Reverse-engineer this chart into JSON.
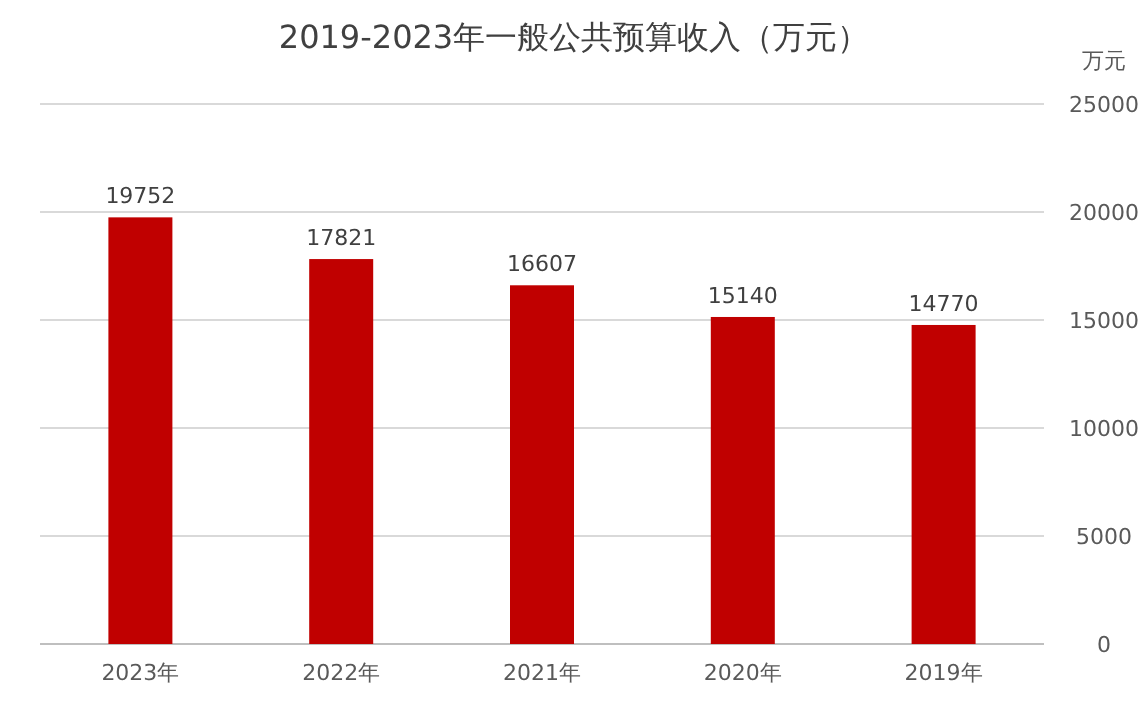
{
  "chart_data": {
    "type": "bar",
    "title": "2019-2023年一般公共预算收入（万元）",
    "ylabel": "万元",
    "categories": [
      "2023年",
      "2022年",
      "2021年",
      "2020年",
      "2019年"
    ],
    "values": [
      19752,
      17821,
      16607,
      15140,
      14770
    ],
    "color": "#c00000",
    "ylim": [
      0,
      25000
    ],
    "yticks": [
      0,
      5000,
      10000,
      15000,
      20000,
      25000
    ],
    "grid": "y",
    "data_labels": true
  }
}
